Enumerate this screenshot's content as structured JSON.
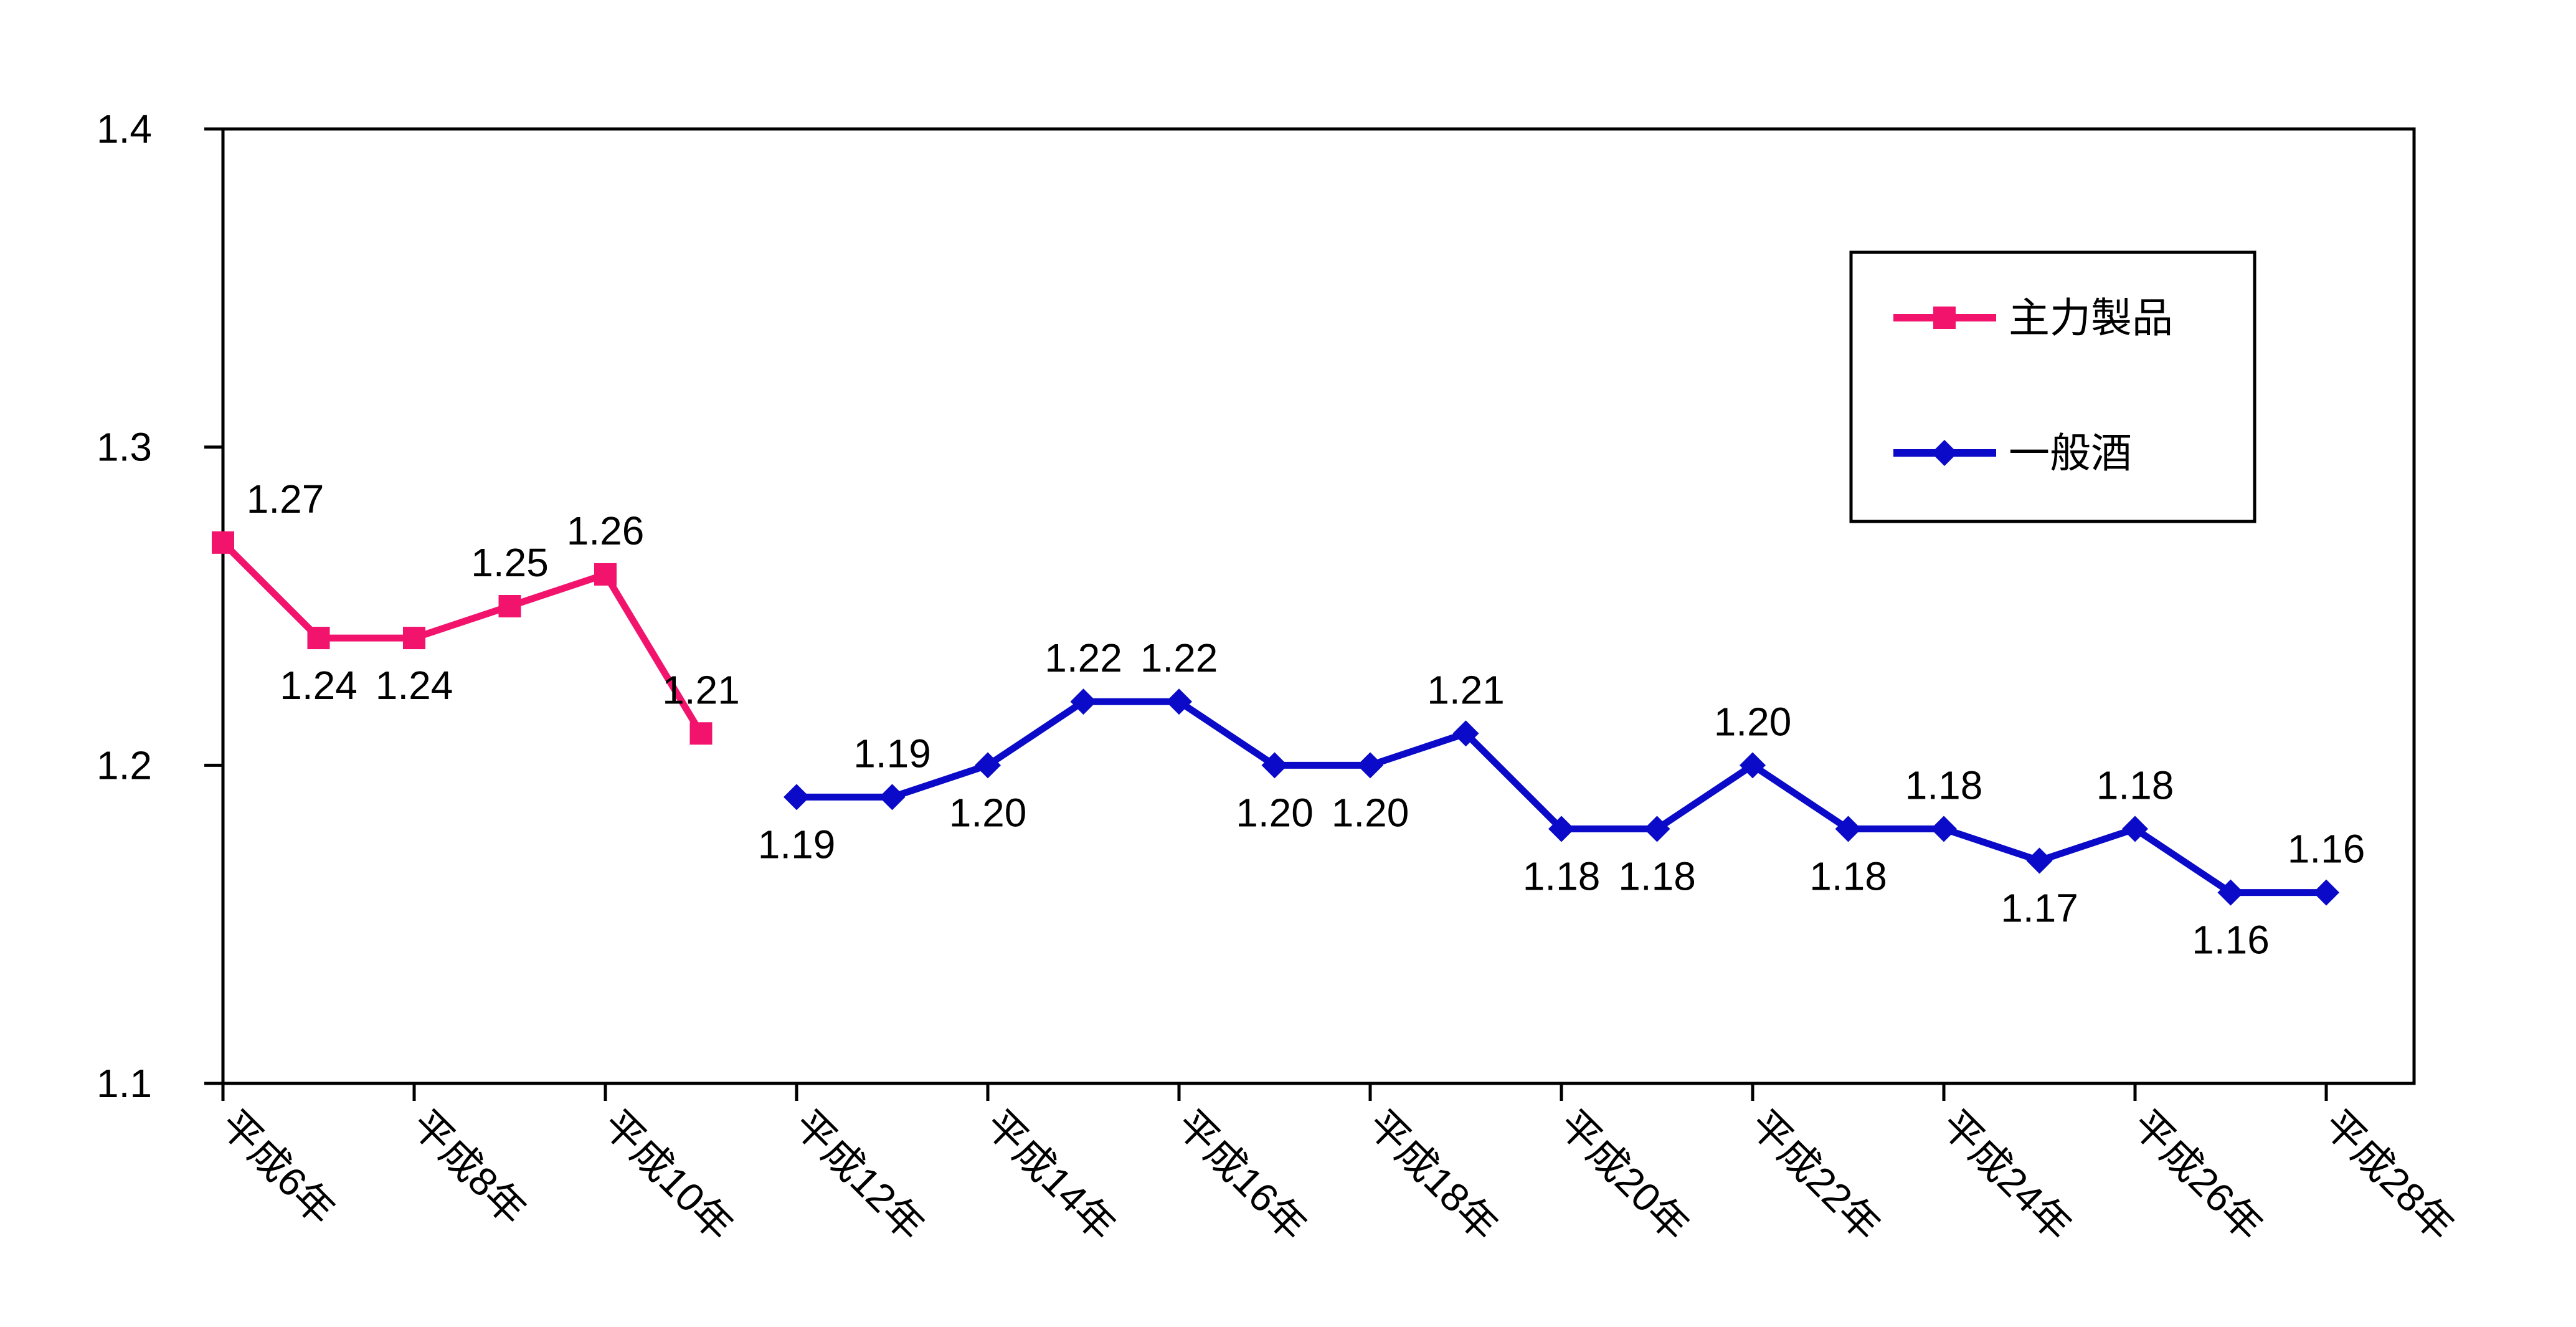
{
  "chart_data": {
    "type": "line",
    "title": "",
    "xlabel": "",
    "ylabel": "",
    "ylim": [
      1.1,
      1.4
    ],
    "y_ticks": [
      "1.1",
      "1.2",
      "1.3",
      "1.4"
    ],
    "x_tick_labels": [
      "平成6年",
      "平成8年",
      "平成10年",
      "平成12年",
      "平成14年",
      "平成16年",
      "平成18年",
      "平成20年",
      "平成22年",
      "平成24年",
      "平成26年",
      "平成28年"
    ],
    "x_years": [
      6,
      7,
      8,
      9,
      10,
      11,
      12,
      13,
      14,
      15,
      16,
      17,
      18,
      19,
      20,
      21,
      22,
      23,
      24,
      25,
      26,
      27,
      28
    ],
    "grid": false,
    "legend_placement": "top-right",
    "series": [
      {
        "name": "主力製品",
        "color": "#f2136c",
        "marker": "square",
        "x": [
          6,
          7,
          8,
          9,
          10,
          11
        ],
        "values": [
          1.27,
          1.24,
          1.24,
          1.25,
          1.26,
          1.21
        ],
        "labels": [
          "1.27",
          "1.24",
          "1.24",
          "1.25",
          "1.26",
          "1.21"
        ],
        "label_side": [
          "above",
          "below",
          "below",
          "above",
          "above",
          "above"
        ]
      },
      {
        "name": "一般酒",
        "color": "#0a0ac8",
        "marker": "diamond",
        "x": [
          12,
          13,
          14,
          15,
          16,
          17,
          18,
          19,
          20,
          21,
          22,
          23,
          24,
          25,
          26,
          27,
          28
        ],
        "values": [
          1.19,
          1.19,
          1.2,
          1.22,
          1.22,
          1.2,
          1.2,
          1.21,
          1.18,
          1.18,
          1.2,
          1.18,
          1.18,
          1.17,
          1.18,
          1.16,
          1.16
        ],
        "labels": [
          "1.19",
          "1.19",
          "1.20",
          "1.22",
          "1.22",
          "1.20",
          "1.20",
          "1.21",
          "1.18",
          "1.18",
          "1.20",
          "1.18",
          "1.18",
          "1.17",
          "1.18",
          "1.16",
          "1.16"
        ],
        "label_side": [
          "below",
          "above",
          "below",
          "above",
          "above",
          "below",
          "below",
          "above",
          "below",
          "below",
          "above",
          "below",
          "above",
          "below",
          "above",
          "below",
          "above"
        ]
      }
    ]
  }
}
